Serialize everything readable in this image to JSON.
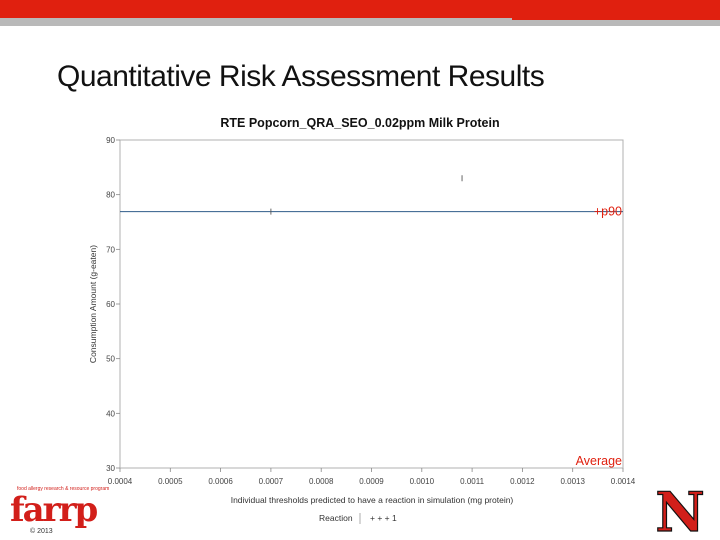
{
  "slide": {
    "title": "Quantitative Risk Assessment Results",
    "copyright": "© 2013"
  },
  "logos": {
    "farrp": {
      "word": "farrp",
      "tagline": "food allergy research & resource program"
    },
    "nebraska": {
      "letter": "N"
    }
  },
  "colors": {
    "brand_red": "#e0200f",
    "topbar_gray": "#b9b9b9",
    "reference_line": "#2f5c8a",
    "annotation_red": "#e0200f"
  },
  "chart_data": {
    "type": "scatter",
    "title": "RTE Popcorn_QRA_SEO_0.02ppm Milk Protein",
    "xlabel": "Individual thresholds predicted to have a reaction in simulation (mg protein)",
    "ylabel": "Consumption Amount (g-eaten)",
    "xlim": [
      0.0004,
      0.0014
    ],
    "ylim": [
      30,
      90
    ],
    "x_ticks": [
      "0.0004",
      "0.0005",
      "0.0006",
      "0.0007",
      "0.0008",
      "0.0009",
      "0.0010",
      "0.0011",
      "0.0012",
      "0.0013",
      "0.0014"
    ],
    "y_ticks": [
      "30",
      "40",
      "50",
      "60",
      "70",
      "80",
      "90"
    ],
    "grid": false,
    "legend": {
      "title": "Reaction",
      "entries": [
        "+ + + 1"
      ],
      "placement": "bottom"
    },
    "series": [
      {
        "values": [
          {
            "x": 0.00108,
            "y": 83
          },
          {
            "x": 0.0007,
            "y": 76.9
          }
        ]
      }
    ],
    "reference_lines": [
      {
        "axis": "y",
        "value": 76.9
      }
    ],
    "annotations": [
      {
        "text": "+p90",
        "x": 0.0014,
        "y": 76.9
      },
      {
        "text": "Average",
        "x": 0.0014,
        "y": 30
      }
    ]
  }
}
